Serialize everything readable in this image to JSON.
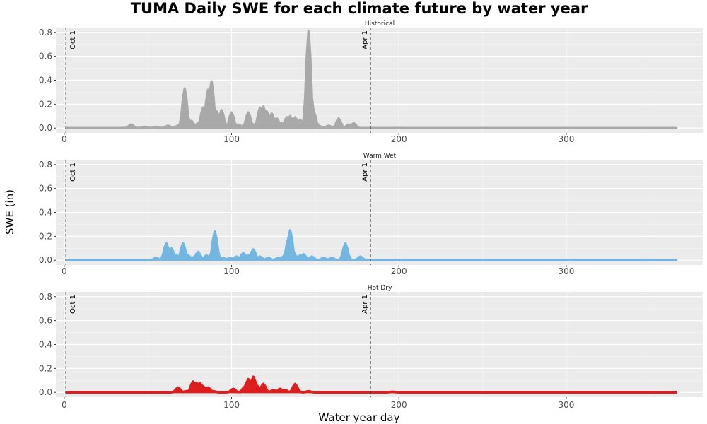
{
  "chart_data": {
    "type": "area",
    "title": "TUMA Daily SWE for each climate future by water year",
    "xlabel": "Water year day",
    "ylabel": "SWE (in)",
    "xlim": [
      -5,
      382
    ],
    "ylim": [
      -0.04,
      0.84
    ],
    "x_ticks": [
      0,
      100,
      200,
      300
    ],
    "y_ticks": [
      0.0,
      0.2,
      0.4,
      0.6,
      0.8
    ],
    "y_tick_labels": [
      "0.0",
      "0.2",
      "0.4",
      "0.6",
      "0.8"
    ],
    "x_tick_labels": [
      "0",
      "100",
      "200",
      "300"
    ],
    "reference_lines": [
      {
        "x": 1,
        "label": "Oct 1"
      },
      {
        "x": 183,
        "label": "Apr 1"
      }
    ],
    "panels": [
      {
        "name": "Historical",
        "color": "#a9a9a9",
        "peaks": [
          [
            40,
            0.03
          ],
          [
            48,
            0.01
          ],
          [
            55,
            0.01
          ],
          [
            62,
            0.02
          ],
          [
            68,
            0.02
          ],
          [
            72,
            0.33
          ],
          [
            76,
            0.06
          ],
          [
            80,
            0.04
          ],
          [
            83,
            0.17
          ],
          [
            86,
            0.32
          ],
          [
            88,
            0.39
          ],
          [
            91,
            0.14
          ],
          [
            94,
            0.15
          ],
          [
            96,
            0.02
          ],
          [
            100,
            0.13
          ],
          [
            104,
            0.03
          ],
          [
            107,
            0.02
          ],
          [
            110,
            0.13
          ],
          [
            113,
            0.03
          ],
          [
            117,
            0.17
          ],
          [
            119,
            0.18
          ],
          [
            121,
            0.14
          ],
          [
            124,
            0.12
          ],
          [
            127,
            0.08
          ],
          [
            130,
            0.04
          ],
          [
            133,
            0.09
          ],
          [
            135,
            0.1
          ],
          [
            138,
            0.09
          ],
          [
            141,
            0.07
          ],
          [
            146,
            0.81
          ],
          [
            149,
            0.14
          ],
          [
            152,
            0.02
          ],
          [
            158,
            0.02
          ],
          [
            164,
            0.08
          ],
          [
            170,
            0.03
          ],
          [
            173,
            0.04
          ]
        ]
      },
      {
        "name": "Warm Wet",
        "color": "#73b6e1",
        "peaks": [
          [
            55,
            0.02
          ],
          [
            61,
            0.14
          ],
          [
            64,
            0.1
          ],
          [
            67,
            0.04
          ],
          [
            71,
            0.14
          ],
          [
            74,
            0.04
          ],
          [
            78,
            0.03
          ],
          [
            80,
            0.07
          ],
          [
            85,
            0.04
          ],
          [
            90,
            0.24
          ],
          [
            95,
            0.02
          ],
          [
            99,
            0.02
          ],
          [
            103,
            0.03
          ],
          [
            107,
            0.06
          ],
          [
            110,
            0.04
          ],
          [
            113,
            0.09
          ],
          [
            117,
            0.03
          ],
          [
            122,
            0.02
          ],
          [
            128,
            0.02
          ],
          [
            131,
            0.03
          ],
          [
            134,
            0.18
          ],
          [
            135,
            0.25
          ],
          [
            138,
            0.04
          ],
          [
            141,
            0.04
          ],
          [
            143,
            0.05
          ],
          [
            148,
            0.03
          ],
          [
            155,
            0.02
          ],
          [
            160,
            0.02
          ],
          [
            168,
            0.14
          ],
          [
            177,
            0.03
          ]
        ]
      },
      {
        "name": "Hot Dry",
        "color": "#de1f1f",
        "peaks": [
          [
            68,
            0.04
          ],
          [
            73,
            0.01
          ],
          [
            77,
            0.09
          ],
          [
            79,
            0.08
          ],
          [
            81,
            0.08
          ],
          [
            83,
            0.05
          ],
          [
            86,
            0.04
          ],
          [
            89,
            0.01
          ],
          [
            101,
            0.03
          ],
          [
            108,
            0.05
          ],
          [
            110,
            0.11
          ],
          [
            113,
            0.13
          ],
          [
            115,
            0.06
          ],
          [
            119,
            0.07
          ],
          [
            125,
            0.02
          ],
          [
            129,
            0.03
          ],
          [
            132,
            0.02
          ],
          [
            138,
            0.07
          ],
          [
            146,
            0.01
          ],
          [
            196,
            0.005
          ]
        ]
      }
    ]
  }
}
